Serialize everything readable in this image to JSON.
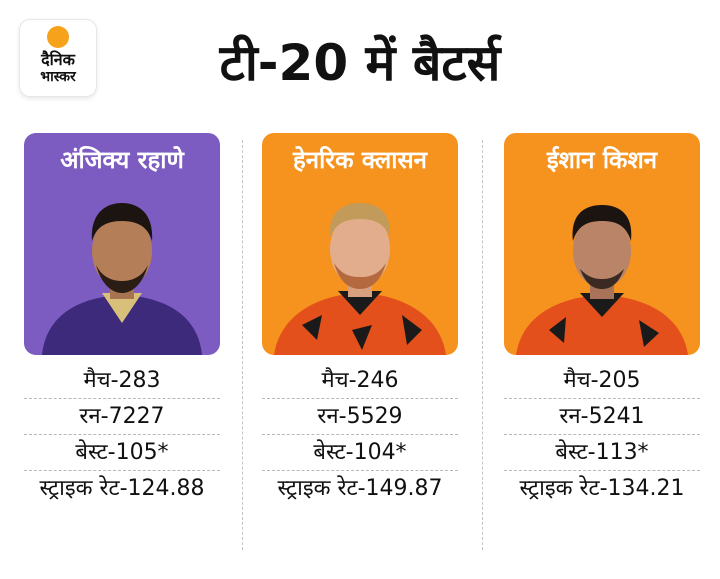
{
  "logo": {
    "line1": "दैनिक",
    "line2": "भास्कर"
  },
  "title": "टी-20 में बैटर्स",
  "players": [
    {
      "name": "अंजिक्य रहाणे",
      "bg": "#7d5cc2",
      "jersey": "#3d2a7a",
      "stats": {
        "matches": "मैच-283",
        "runs": "रन-7227",
        "best": "बेस्ट-105*",
        "strike_rate": "स्ट्राइक रेट-124.88"
      }
    },
    {
      "name": "हेनरिक क्लासन",
      "bg": "#f6921e",
      "jersey": "#e3501b",
      "stats": {
        "matches": "मैच-246",
        "runs": "रन-5529",
        "best": "बेस्ट-104*",
        "strike_rate": "स्ट्राइक रेट-149.87"
      }
    },
    {
      "name": "ईशान किशन",
      "bg": "#f6921e",
      "jersey": "#e3501b",
      "stats": {
        "matches": "मैच-205",
        "runs": "रन-5241",
        "best": "बेस्ट-113*",
        "strike_rate": "स्ट्राइक रेट-134.21"
      }
    }
  ]
}
